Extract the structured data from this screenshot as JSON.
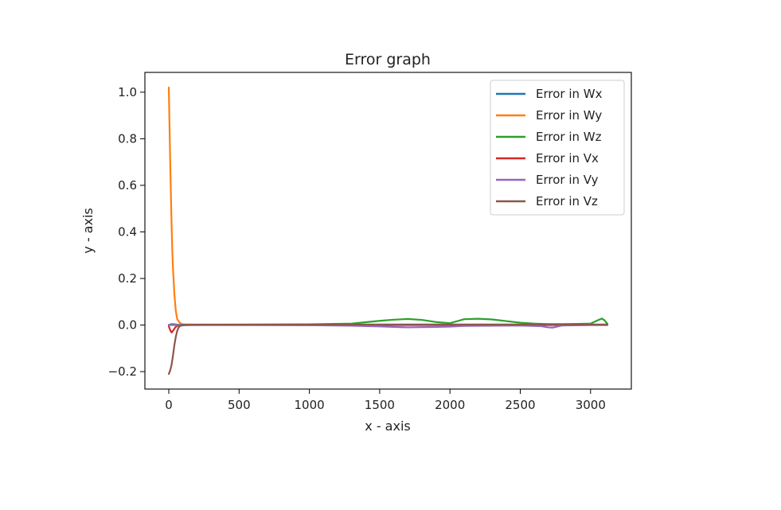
{
  "chart_data": {
    "type": "line",
    "title": "Error graph",
    "xlabel": "x - axis",
    "ylabel": "y - axis",
    "xlim": [
      -170,
      3290
    ],
    "ylim": [
      -0.275,
      1.085
    ],
    "xticks": [
      0,
      500,
      1000,
      1500,
      2000,
      2500,
      3000
    ],
    "yticks": [
      -0.2,
      0.0,
      0.2,
      0.4,
      0.6,
      0.8,
      1.0
    ],
    "grid": false,
    "legend_position": "top-right",
    "series": [
      {
        "name": "Error in Wx",
        "color": "#1f77b4",
        "x": [
          0,
          10,
          20,
          40,
          60,
          100,
          500,
          1000,
          1500,
          2000,
          2500,
          3000,
          3120
        ],
        "y": [
          0.0,
          0.002,
          0.004,
          0.003,
          0.002,
          0.001,
          0.001,
          0.001,
          0.002,
          0.002,
          0.002,
          0.002,
          0.002
        ]
      },
      {
        "name": "Error in Wy",
        "color": "#ff7f0e",
        "x": [
          0,
          5,
          10,
          15,
          20,
          25,
          30,
          40,
          50,
          60,
          80,
          100,
          200,
          500,
          1000,
          1500,
          2000,
          2500,
          3000,
          3120
        ],
        "y": [
          1.02,
          0.86,
          0.7,
          0.56,
          0.43,
          0.32,
          0.24,
          0.13,
          0.06,
          0.025,
          0.008,
          0.003,
          0.002,
          0.001,
          0.001,
          0.002,
          0.002,
          0.002,
          0.002,
          0.002
        ]
      },
      {
        "name": "Error in Wz",
        "color": "#2ca02c",
        "x": [
          0,
          500,
          1000,
          1300,
          1400,
          1500,
          1600,
          1700,
          1800,
          1900,
          2000,
          2060,
          2100,
          2200,
          2300,
          2400,
          2500,
          2600,
          2700,
          2800,
          2900,
          3000,
          3050,
          3080,
          3100,
          3120
        ],
        "y": [
          0.001,
          0.002,
          0.003,
          0.006,
          0.012,
          0.018,
          0.023,
          0.026,
          0.022,
          0.013,
          0.008,
          0.018,
          0.025,
          0.027,
          0.024,
          0.017,
          0.01,
          0.006,
          0.004,
          0.004,
          0.005,
          0.006,
          0.02,
          0.028,
          0.02,
          0.005
        ]
      },
      {
        "name": "Error in Vx",
        "color": "#d62728",
        "x": [
          0,
          10,
          20,
          30,
          40,
          50,
          60,
          80,
          100,
          200,
          500,
          1000,
          1500,
          2000,
          2500,
          3000,
          3120
        ],
        "y": [
          -0.005,
          -0.022,
          -0.032,
          -0.025,
          -0.015,
          -0.008,
          -0.003,
          -0.001,
          0.0,
          0.0,
          0.0,
          0.0,
          0.0,
          0.0,
          0.0,
          0.0,
          0.0
        ]
      },
      {
        "name": "Error in Vy",
        "color": "#9467bd",
        "x": [
          0,
          500,
          1000,
          1300,
          1500,
          1700,
          1900,
          2000,
          2100,
          2300,
          2500,
          2650,
          2700,
          2730,
          2760,
          2800,
          3000,
          3120
        ],
        "y": [
          0.0,
          0.0,
          -0.001,
          -0.003,
          -0.006,
          -0.01,
          -0.008,
          -0.007,
          -0.004,
          -0.003,
          -0.002,
          -0.005,
          -0.01,
          -0.011,
          -0.007,
          -0.002,
          0.0,
          0.0
        ]
      },
      {
        "name": "Error in Vz",
        "color": "#8c564b",
        "x": [
          0,
          10,
          20,
          30,
          40,
          50,
          60,
          70,
          80,
          100,
          150,
          200,
          500,
          1000,
          1500,
          2000,
          2500,
          3000,
          3120
        ],
        "y": [
          -0.21,
          -0.195,
          -0.17,
          -0.13,
          -0.085,
          -0.05,
          -0.025,
          -0.01,
          -0.004,
          -0.001,
          0.001,
          0.002,
          0.002,
          0.002,
          0.002,
          0.002,
          0.002,
          0.002,
          0.002
        ]
      }
    ]
  }
}
